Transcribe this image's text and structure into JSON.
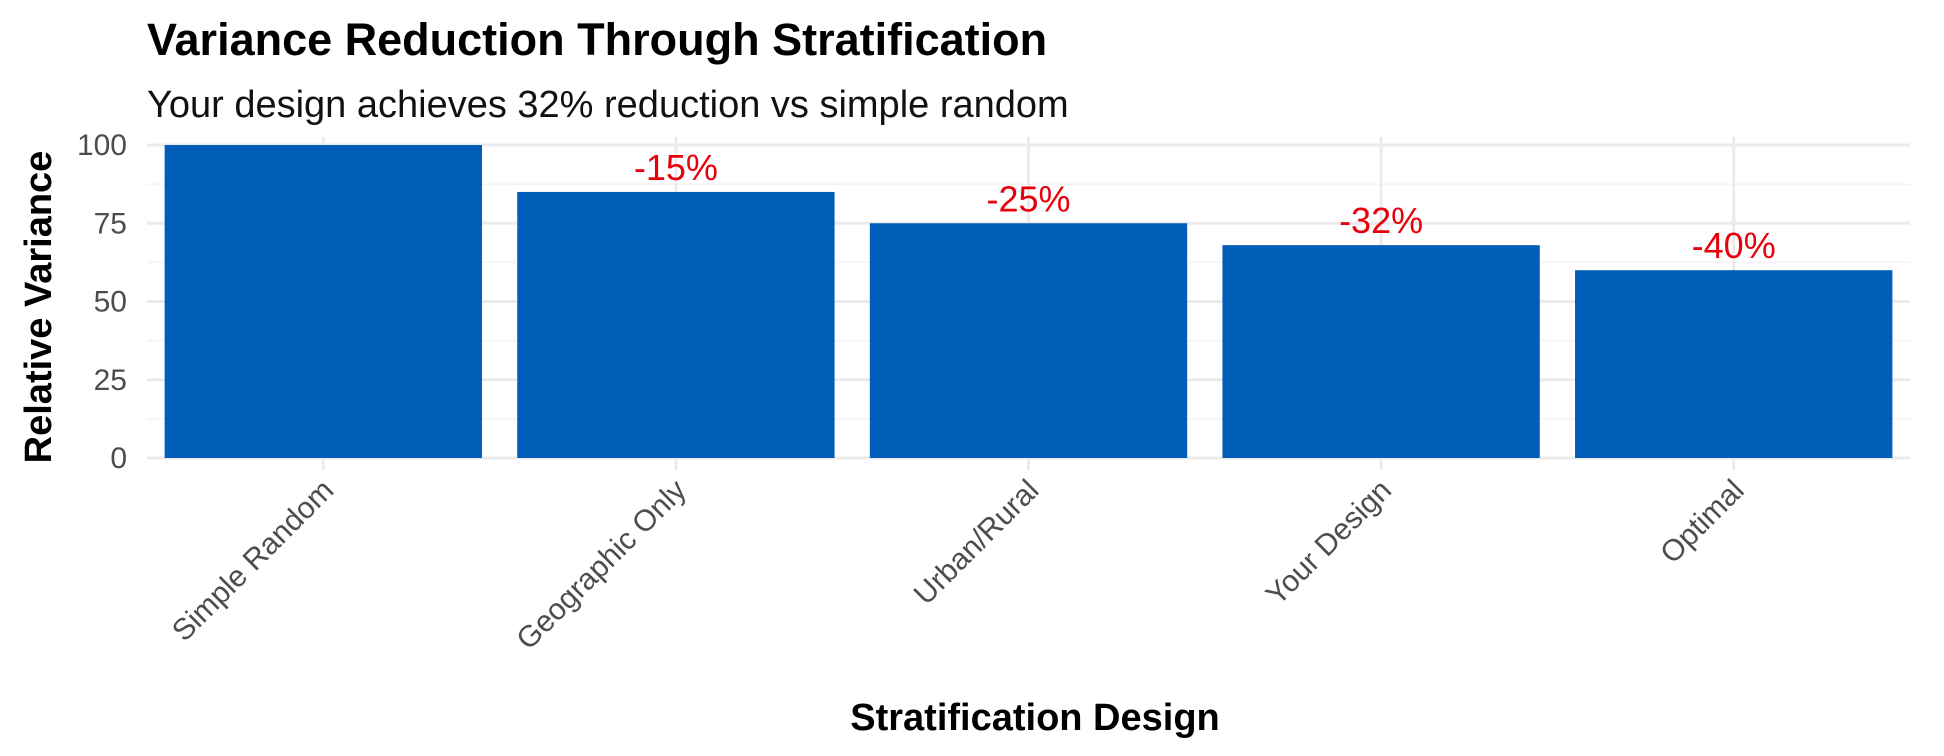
{
  "chart_data": {
    "type": "bar",
    "title": "Variance Reduction Through Stratification",
    "subtitle": "Your design achieves 32% reduction vs simple random",
    "xlabel": "Stratification Design",
    "ylabel": "Relative Variance",
    "categories": [
      "Simple Random",
      "Geographic Only",
      "Urban/Rural",
      "Your Design",
      "Optimal"
    ],
    "values": [
      100,
      85,
      75,
      68,
      60
    ],
    "data_labels": [
      "",
      "-15%",
      "-25%",
      "-32%",
      "-40%"
    ],
    "ylim": [
      0,
      100
    ],
    "yticks": [
      0,
      25,
      50,
      75,
      100
    ],
    "yticklabels": [
      "0",
      "25",
      "50",
      "75",
      "100"
    ],
    "grid": true,
    "legend": "none",
    "colors": {
      "bar": "#005EB8",
      "data_label": "#E8000B",
      "grid": "#EBEBEB"
    }
  }
}
